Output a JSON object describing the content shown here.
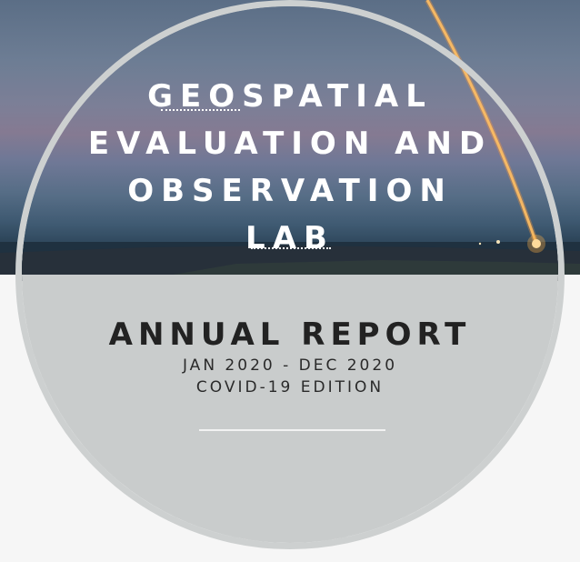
{
  "cover": {
    "lab_name_lines": [
      "GEOSPATIAL",
      "EVALUATION AND",
      "OBSERVATION",
      "LAB"
    ],
    "report_title": "ANNUAL REPORT",
    "date_range": "JAN 2020 - DEC 2020",
    "edition": "COVID-19 EDITION"
  },
  "colors": {
    "page_background": "#f6f6f6",
    "circle_fill": "#c9cccc",
    "circle_border": "#cdd0d0",
    "title_text": "#ffffff",
    "report_text": "#222222",
    "rocket_trail": "#ffb347"
  },
  "image": {
    "subject": "rocket-launch-photo"
  }
}
